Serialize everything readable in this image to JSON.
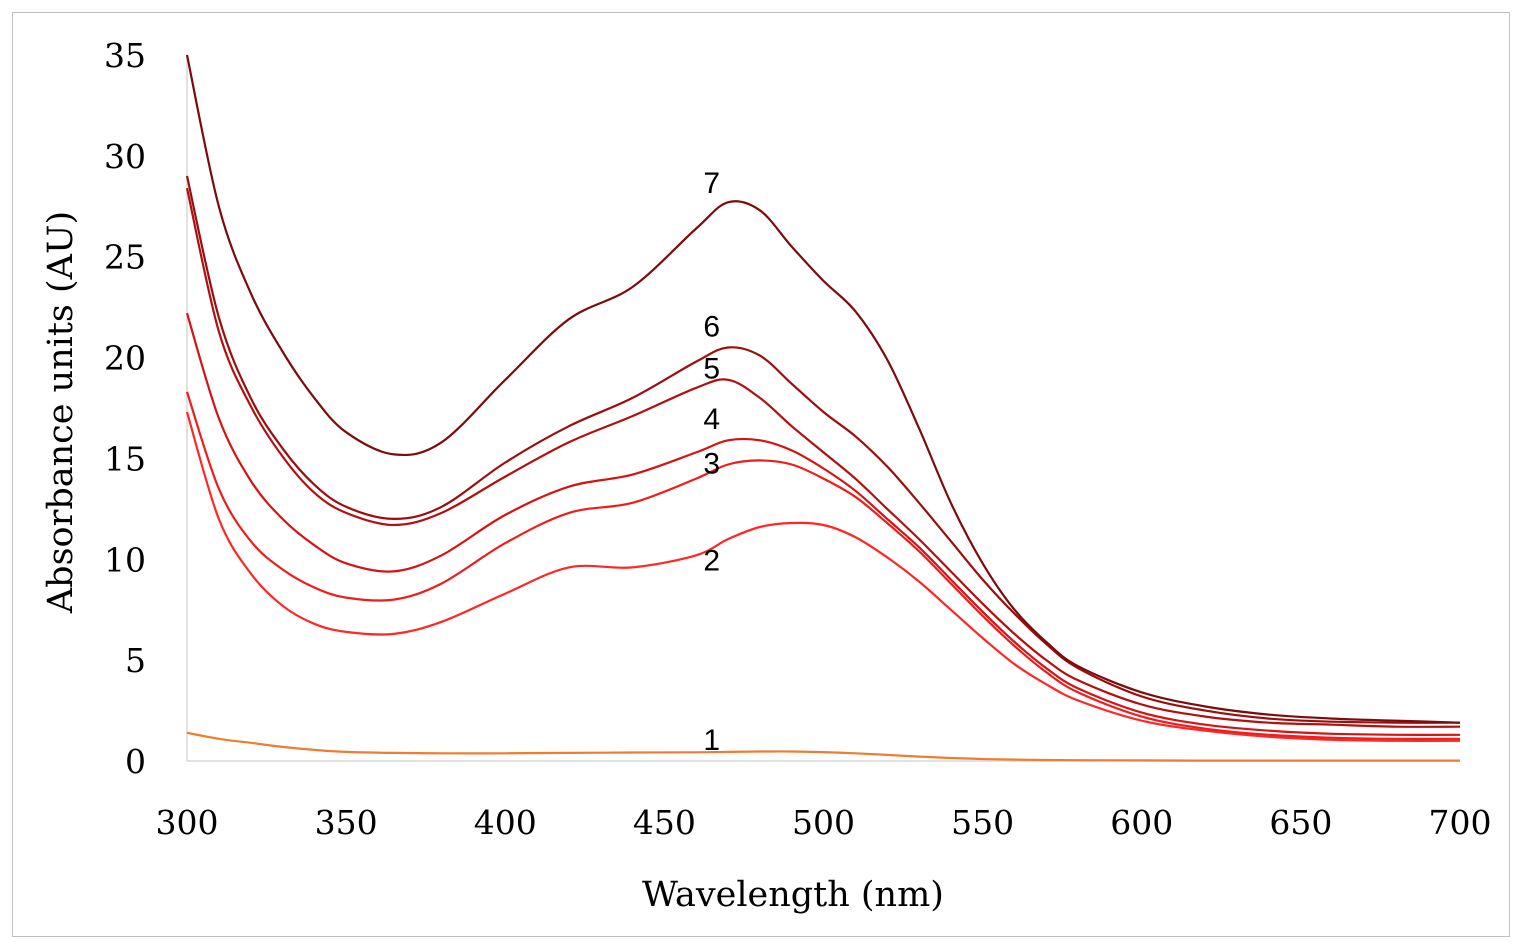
{
  "chart_data": {
    "type": "line",
    "title": "",
    "xlabel": "Wavelength (nm)",
    "ylabel": "Absorbance units (AU)",
    "xlim": [
      300,
      700
    ],
    "ylim": [
      0,
      35
    ],
    "x_ticks": [
      "300",
      "350",
      "400",
      "450",
      "500",
      "550",
      "600",
      "650",
      "700"
    ],
    "y_ticks": [
      "0",
      "5",
      "10",
      "15",
      "20",
      "25",
      "30",
      "35"
    ],
    "grid": false,
    "x": [
      300,
      310,
      320,
      330,
      340,
      350,
      365,
      380,
      400,
      420,
      440,
      460,
      470,
      480,
      490,
      500,
      510,
      520,
      530,
      540,
      550,
      560,
      570,
      580,
      600,
      620,
      640,
      660,
      680,
      700
    ],
    "series": [
      {
        "name": "1",
        "color": "#ed7d31",
        "values": [
          1.4,
          1.1,
          0.9,
          0.7,
          0.55,
          0.45,
          0.4,
          0.38,
          0.38,
          0.4,
          0.42,
          0.43,
          0.45,
          0.47,
          0.47,
          0.44,
          0.38,
          0.3,
          0.22,
          0.15,
          0.1,
          0.07,
          0.05,
          0.04,
          0.03,
          0.02,
          0.02,
          0.02,
          0.02,
          0.02
        ]
      },
      {
        "name": "2",
        "color": "#ff2626",
        "values": [
          17.3,
          12.0,
          9.3,
          7.7,
          6.8,
          6.4,
          6.3,
          6.9,
          8.3,
          9.6,
          9.6,
          10.2,
          11.0,
          11.6,
          11.8,
          11.7,
          11.1,
          10.1,
          8.9,
          7.5,
          6.1,
          4.8,
          3.8,
          3.0,
          2.0,
          1.5,
          1.2,
          1.05,
          1.0,
          1.0
        ]
      },
      {
        "name": "3",
        "color": "#f01c1c",
        "values": [
          18.3,
          13.5,
          10.9,
          9.5,
          8.6,
          8.1,
          8.0,
          8.8,
          10.8,
          12.3,
          12.8,
          14.0,
          14.7,
          14.9,
          14.7,
          14.0,
          13.1,
          11.8,
          10.4,
          8.8,
          7.2,
          5.7,
          4.4,
          3.4,
          2.2,
          1.6,
          1.3,
          1.15,
          1.1,
          1.1
        ]
      },
      {
        "name": "4",
        "color": "#d41414",
        "values": [
          22.2,
          17.0,
          13.9,
          12.0,
          10.7,
          9.8,
          9.4,
          10.2,
          12.2,
          13.6,
          14.2,
          15.3,
          15.9,
          15.9,
          15.4,
          14.5,
          13.4,
          12.0,
          10.6,
          9.0,
          7.4,
          5.9,
          4.6,
          3.6,
          2.4,
          1.8,
          1.5,
          1.35,
          1.3,
          1.3
        ]
      },
      {
        "name": "5",
        "color": "#b01010",
        "values": [
          28.4,
          21.3,
          17.6,
          15.1,
          13.3,
          12.3,
          11.7,
          12.3,
          14.1,
          15.8,
          17.1,
          18.5,
          18.9,
          18.0,
          16.6,
          15.3,
          14.0,
          12.5,
          11.0,
          9.4,
          7.8,
          6.3,
          5.0,
          4.0,
          2.8,
          2.2,
          1.9,
          1.8,
          1.7,
          1.7
        ]
      },
      {
        "name": "6",
        "color": "#9a0e0e",
        "values": [
          29.0,
          22.0,
          18.0,
          15.5,
          13.7,
          12.6,
          12.0,
          12.6,
          14.8,
          16.6,
          18.0,
          19.8,
          20.5,
          20.1,
          18.7,
          17.3,
          16.1,
          14.6,
          12.8,
          10.9,
          9.0,
          7.3,
          5.8,
          4.6,
          3.2,
          2.5,
          2.1,
          1.95,
          1.9,
          1.9
        ]
      },
      {
        "name": "7",
        "color": "#7b0c0c",
        "values": [
          35.0,
          27.5,
          23.2,
          20.3,
          18.0,
          16.3,
          15.2,
          15.8,
          18.9,
          21.9,
          23.5,
          26.4,
          27.7,
          27.3,
          25.5,
          23.8,
          22.3,
          19.9,
          16.5,
          12.8,
          9.8,
          7.5,
          5.9,
          4.7,
          3.4,
          2.7,
          2.3,
          2.1,
          2.0,
          1.9
        ]
      }
    ],
    "annotations": [
      {
        "text": "1",
        "x": 463,
        "y": 1.1
      },
      {
        "text": "2",
        "x": 463,
        "y": 10.0
      },
      {
        "text": "3",
        "x": 463,
        "y": 14.8
      },
      {
        "text": "4",
        "x": 463,
        "y": 17.0
      },
      {
        "text": "5",
        "x": 463,
        "y": 19.5
      },
      {
        "text": "6",
        "x": 463,
        "y": 21.6
      },
      {
        "text": "7",
        "x": 463,
        "y": 28.7
      }
    ]
  }
}
